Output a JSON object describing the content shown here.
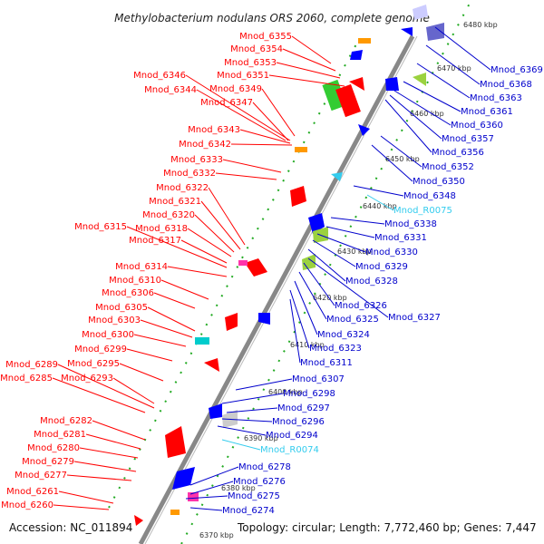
{
  "title": "Methylobacterium nodulans ORS 2060, complete genome",
  "footer": {
    "accession": "Accession: NC_011894",
    "topology": "Topology: circular; Length: 7,772,460 bp; Genes: 7,447"
  },
  "colors": {
    "strand_minus_label": "#ff0000",
    "strand_plus_label": "#0000cc",
    "rna_label": "#33ccee",
    "backbone": "#888888",
    "dots": "#22aa22"
  },
  "kbp_ticks": [
    "6370 kbp",
    "6380 kbp",
    "6390 kbp",
    "6400 kbp",
    "6410 kbp",
    "6420 kbp",
    "6430 kbp",
    "6440 kbp",
    "6450 kbp",
    "6460 kbp",
    "6470 kbp",
    "6480 kbp"
  ],
  "left_labels": [
    "Mnod_6355",
    "Mnod_6354",
    "Mnod_6353",
    "Mnod_6351",
    "Mnod_6346",
    "Mnod_6349",
    "Mnod_6344",
    "Mnod_6347",
    "Mnod_6343",
    "Mnod_6342",
    "Mnod_6333",
    "Mnod_6332",
    "Mnod_6322",
    "Mnod_6321",
    "Mnod_6320",
    "Mnod_6315",
    "Mnod_6318",
    "Mnod_6317",
    "Mnod_6314",
    "Mnod_6310",
    "Mnod_6306",
    "Mnod_6305",
    "Mnod_6303",
    "Mnod_6300",
    "Mnod_6299",
    "Mnod_6289",
    "Mnod_6295",
    "Mnod_6285",
    "Mnod_6293",
    "Mnod_6282",
    "Mnod_6281",
    "Mnod_6280",
    "Mnod_6279",
    "Mnod_6277",
    "Mnod_6261",
    "Mnod_6260"
  ],
  "right_labels": [
    "Mnod_6369",
    "Mnod_6368",
    "Mnod_6363",
    "Mnod_6361",
    "Mnod_6360",
    "Mnod_6357",
    "Mnod_6356",
    "Mnod_6352",
    "Mnod_6350",
    "Mnod_6348",
    "Mnod_R0075",
    "Mnod_6338",
    "Mnod_6331",
    "Mnod_6330",
    "Mnod_6329",
    "Mnod_6328",
    "Mnod_6327",
    "Mnod_6326",
    "Mnod_6325",
    "Mnod_6324",
    "Mnod_6323",
    "Mnod_6311",
    "Mnod_6307",
    "Mnod_6298",
    "Mnod_6297",
    "Mnod_6296",
    "Mnod_6294",
    "Mnod_R0074",
    "Mnod_6278",
    "Mnod_6276",
    "Mnod_6275",
    "Mnod_6274"
  ]
}
